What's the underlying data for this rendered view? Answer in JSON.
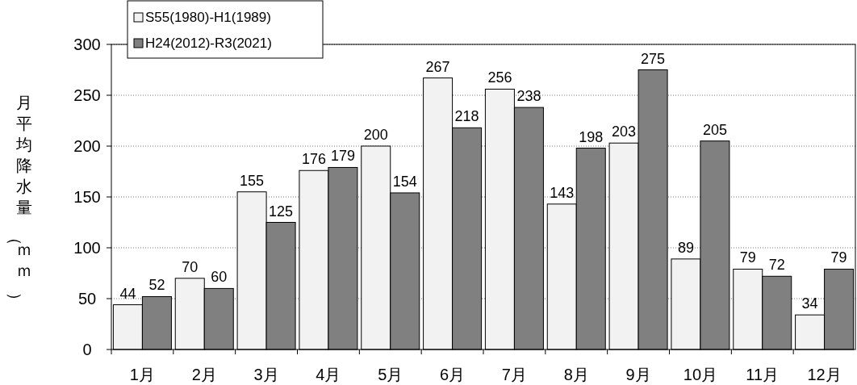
{
  "chart_data": {
    "type": "bar",
    "ylabel": "月平均降水量（ｍｍ）",
    "categories": [
      "1月",
      "2月",
      "3月",
      "4月",
      "5月",
      "6月",
      "7月",
      "8月",
      "9月",
      "10月",
      "11月",
      "12月"
    ],
    "series": [
      {
        "name": "S55(1980)-H1(1989)",
        "color": "#f2f2f2",
        "values": [
          44,
          70,
          155,
          176,
          200,
          267,
          256,
          143,
          203,
          89,
          79,
          34
        ]
      },
      {
        "name": "H24(2012)-R3(2021)",
        "color": "#808080",
        "values": [
          52,
          60,
          125,
          179,
          154,
          218,
          238,
          198,
          275,
          205,
          72,
          79
        ]
      }
    ],
    "ylim": [
      0,
      300
    ],
    "yticks": [
      0,
      50,
      100,
      150,
      200,
      250,
      300
    ],
    "grid": "y",
    "legend": "top left",
    "data_labels": true
  }
}
